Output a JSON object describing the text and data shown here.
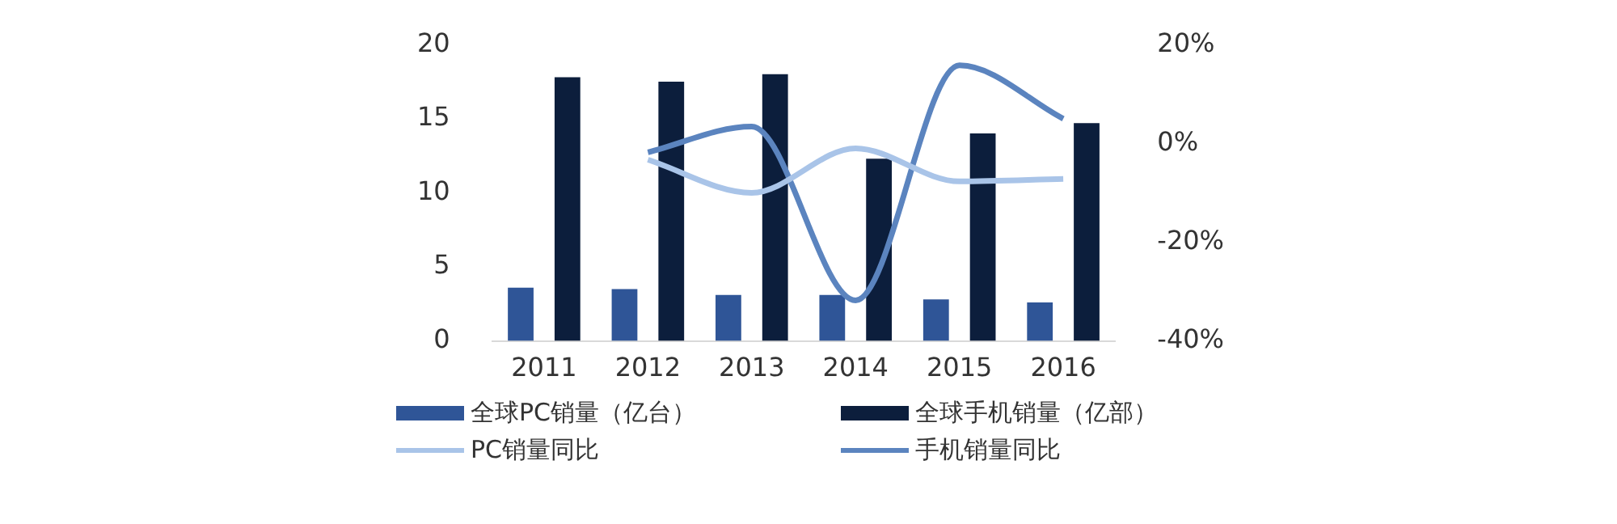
{
  "chart_data": {
    "type": "bar",
    "categories": [
      "2011",
      "2012",
      "2013",
      "2014",
      "2015",
      "2016"
    ],
    "series": [
      {
        "name": "全球PC销量（亿台）",
        "color": "#2f5597",
        "values": [
          3.6,
          3.5,
          3.1,
          3.1,
          2.8,
          2.6
        ]
      },
      {
        "name": "全球手机销量（亿部）",
        "color": "#0c1e3c",
        "values": [
          17.8,
          17.5,
          18.0,
          12.3,
          14.0,
          14.7
        ]
      },
      {
        "name": "PC销量同比",
        "type": "line",
        "axis": "y2",
        "color": "#a9c4e8",
        "values": [
          null,
          -3.3,
          -10,
          -1,
          -7.7,
          -7.2
        ]
      },
      {
        "name": "手机销量同比",
        "type": "line",
        "axis": "y2",
        "color": "#5b84bf",
        "values": [
          null,
          -1.8,
          3.4,
          -31.8,
          15.8,
          5
        ]
      }
    ],
    "ylim": [
      0,
      20
    ],
    "yticks": [
      0,
      5,
      10,
      15,
      20
    ],
    "y2lim": [
      -40,
      20
    ],
    "y2ticks": [
      {
        "value": -40,
        "label": "-40%"
      },
      {
        "value": -20,
        "label": "-20%"
      },
      {
        "value": 0,
        "label": "0%"
      },
      {
        "value": 20,
        "label": "20%"
      }
    ],
    "grid": false,
    "legend": "bottom",
    "marker": "none",
    "line_style": "solid"
  }
}
